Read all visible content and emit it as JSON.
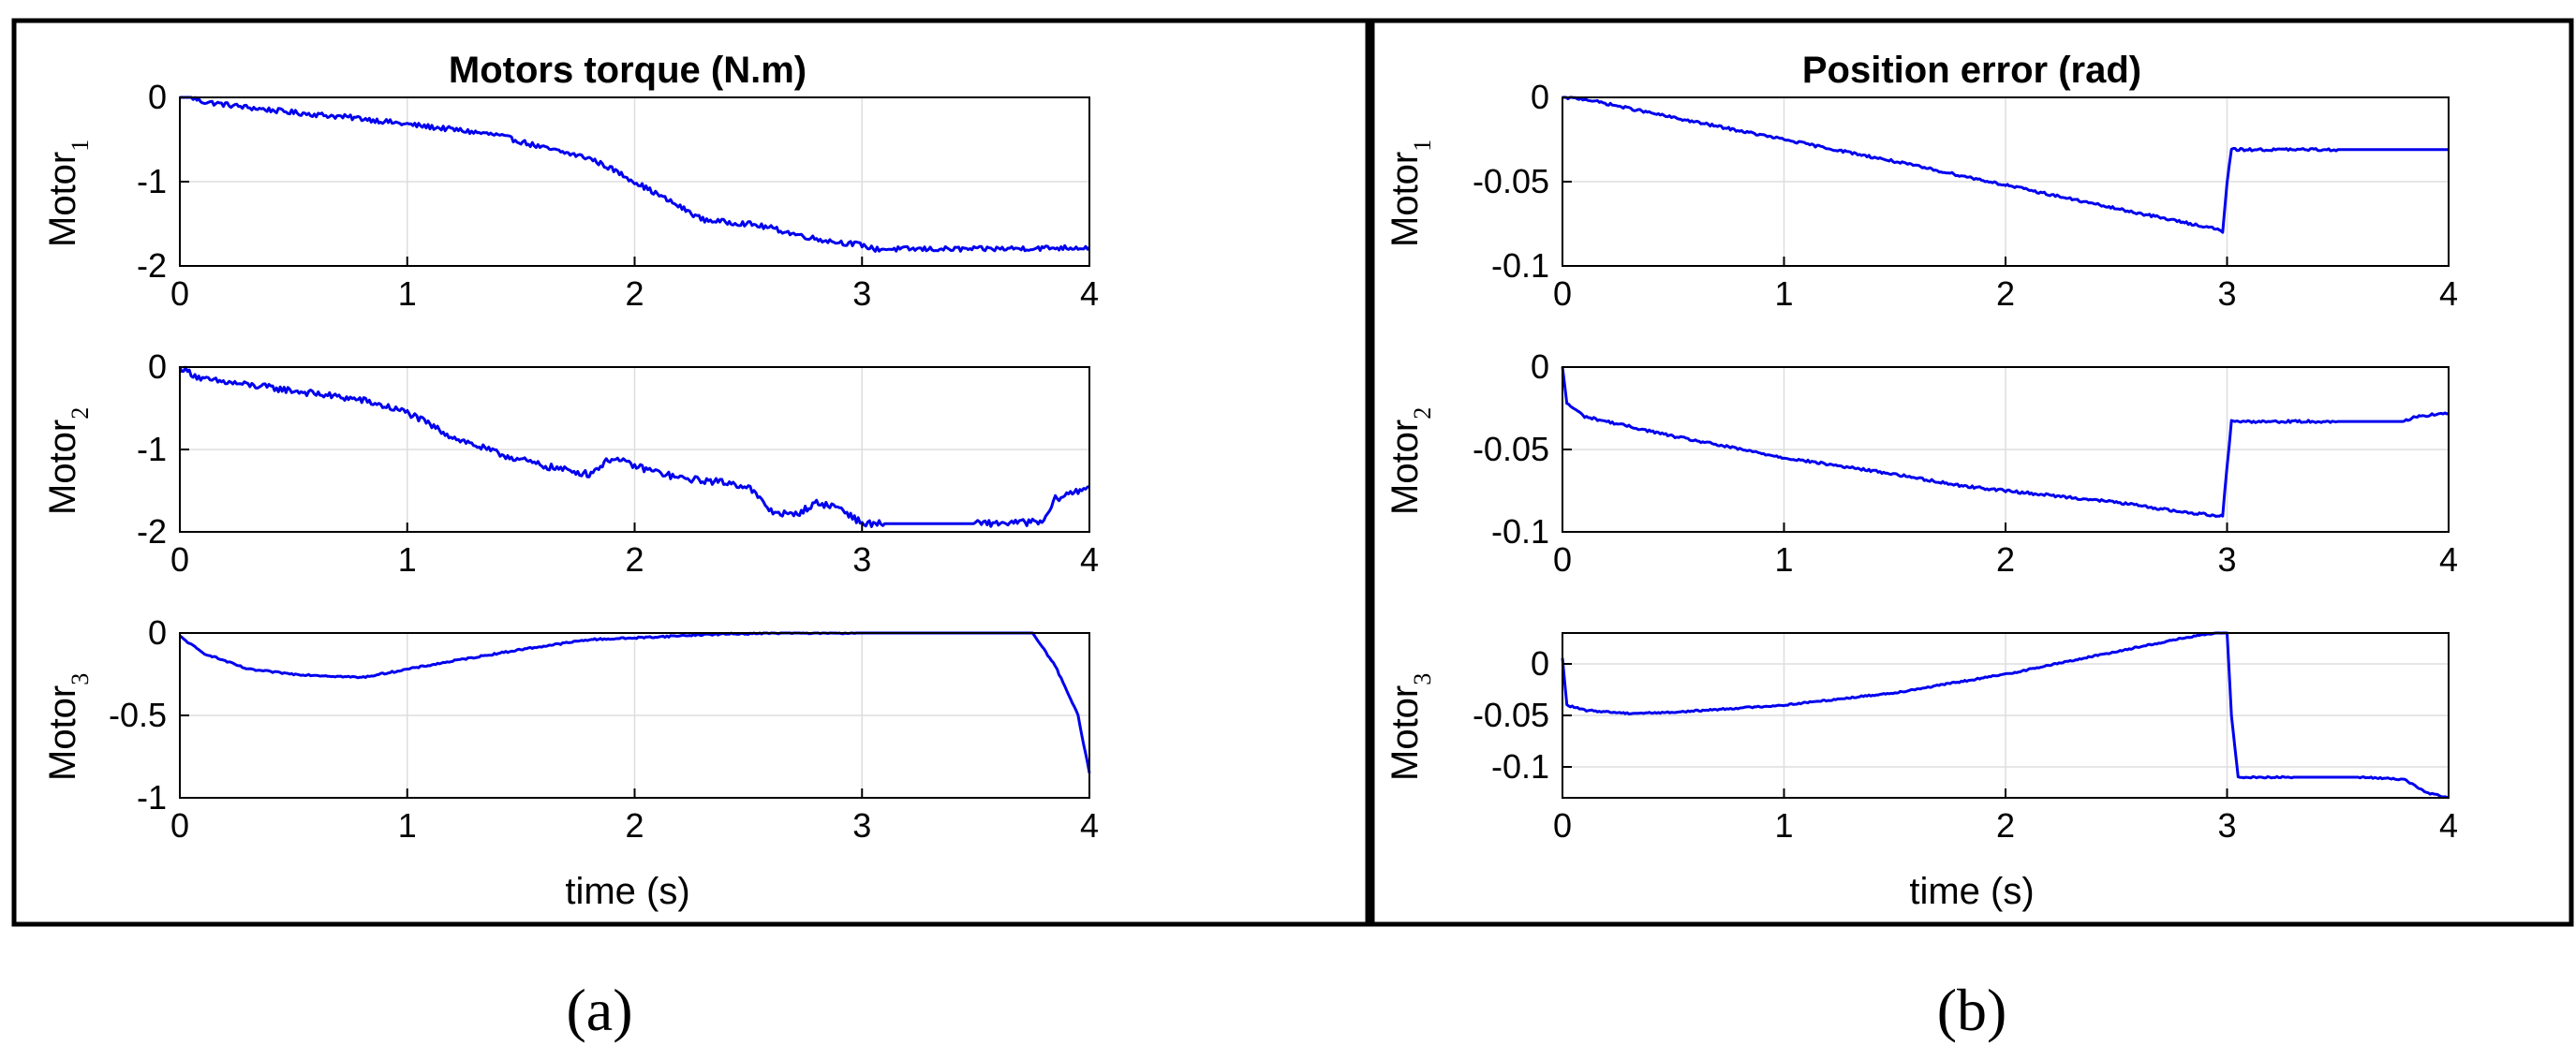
{
  "figures": [
    {
      "title": "Motors torque (N.m)",
      "caption": "(a)",
      "xlabel": "time (s)"
    },
    {
      "title": "Position error (rad)",
      "caption": "(b)",
      "xlabel": "time (s)"
    }
  ],
  "colors": {
    "series": "#0000ee",
    "grid": "#dedede",
    "frame": "#000000"
  },
  "chart_data": [
    {
      "type": "line",
      "figure": "(a)",
      "panel_title": "Motors torque (N.m)",
      "ylabel": "Motor",
      "ylabel_sub": "1",
      "xlabel": "",
      "xlim": [
        0,
        4
      ],
      "ylim": [
        -2,
        0
      ],
      "xticks": [
        "0",
        "1",
        "2",
        "3",
        "4"
      ],
      "yticks": [
        {
          "v": 0,
          "label": "0"
        },
        {
          "v": -1,
          "label": "-1"
        },
        {
          "v": -2,
          "label": "-2"
        }
      ],
      "grid": true,
      "x": [
        0,
        0.05,
        0.1,
        0.3,
        0.5,
        0.8,
        1.0,
        1.2,
        1.4,
        1.6,
        1.8,
        1.9,
        2.0,
        2.1,
        2.2,
        2.3,
        2.4,
        2.5,
        2.6,
        2.7,
        2.8,
        2.9,
        3.0,
        3.05,
        3.5,
        4.0
      ],
      "values": [
        0,
        0,
        -0.05,
        -0.12,
        -0.18,
        -0.25,
        -0.32,
        -0.38,
        -0.45,
        -0.6,
        -0.72,
        -0.85,
        -1.0,
        -1.15,
        -1.3,
        -1.45,
        -1.48,
        -1.5,
        -1.55,
        -1.62,
        -1.68,
        -1.72,
        -1.75,
        -1.8,
        -1.8,
        -1.78
      ],
      "noise": 0.06
    },
    {
      "type": "line",
      "figure": "(a)",
      "ylabel": "Motor",
      "ylabel_sub": "2",
      "xlabel": "",
      "xlim": [
        0,
        4
      ],
      "ylim": [
        -2,
        0
      ],
      "xticks": [
        "0",
        "1",
        "2",
        "3",
        "4"
      ],
      "yticks": [
        {
          "v": 0,
          "label": "0"
        },
        {
          "v": -1,
          "label": "-1"
        },
        {
          "v": -2,
          "label": "-2"
        }
      ],
      "grid": true,
      "x": [
        0,
        0.1,
        0.4,
        0.8,
        1.0,
        1.2,
        1.4,
        1.6,
        1.8,
        1.9,
        2.0,
        2.2,
        2.4,
        2.5,
        2.6,
        2.7,
        2.8,
        2.9,
        3.0,
        3.1,
        3.5,
        3.8,
        3.85,
        3.95,
        4.0
      ],
      "values": [
        0,
        -0.15,
        -0.25,
        -0.4,
        -0.55,
        -0.85,
        -1.05,
        -1.2,
        -1.3,
        -1.1,
        -1.2,
        -1.35,
        -1.4,
        -1.45,
        -1.75,
        -1.8,
        -1.65,
        -1.7,
        -1.9,
        -1.9,
        -1.9,
        -1.88,
        -1.6,
        -1.5,
        -1.45
      ],
      "noise": 0.08
    },
    {
      "type": "line",
      "figure": "(a)",
      "ylabel": "Motor",
      "ylabel_sub": "3",
      "xlabel": "time (s)",
      "xlim": [
        0,
        4
      ],
      "ylim": [
        -1,
        0
      ],
      "xticks": [
        "0",
        "1",
        "2",
        "3",
        "4"
      ],
      "yticks": [
        {
          "v": 0,
          "label": "0"
        },
        {
          "v": -0.5,
          "label": "-0.5"
        },
        {
          "v": -1,
          "label": "-1"
        }
      ],
      "grid": true,
      "x": [
        0,
        0.1,
        0.3,
        0.5,
        0.8,
        1.0,
        1.2,
        1.5,
        1.8,
        2.0,
        2.3,
        2.6,
        3.0,
        3.5,
        3.75,
        3.85,
        3.95,
        4.0
      ],
      "values": [
        -0.02,
        -0.12,
        -0.22,
        -0.25,
        -0.27,
        -0.22,
        -0.17,
        -0.1,
        -0.04,
        -0.03,
        -0.01,
        0.0,
        0.0,
        0.0,
        0.0,
        -0.2,
        -0.5,
        -0.85
      ],
      "noise": 0.01
    },
    {
      "type": "line",
      "figure": "(b)",
      "panel_title": "Position error (rad)",
      "ylabel": "Motor",
      "ylabel_sub": "1",
      "xlabel": "",
      "xlim": [
        0,
        4
      ],
      "ylim": [
        -0.1,
        0
      ],
      "xticks": [
        "0",
        "1",
        "2",
        "3",
        "4"
      ],
      "yticks": [
        {
          "v": 0,
          "label": "0"
        },
        {
          "v": -0.05,
          "label": "-0.05"
        },
        {
          "v": -0.1,
          "label": "-0.1"
        }
      ],
      "grid": true,
      "x": [
        0,
        0.1,
        0.5,
        1.0,
        1.5,
        2.0,
        2.5,
        2.95,
        2.98,
        3.0,
        3.02,
        3.5,
        4.0
      ],
      "values": [
        0,
        -0.001,
        -0.012,
        -0.025,
        -0.038,
        -0.052,
        -0.066,
        -0.078,
        -0.08,
        -0.05,
        -0.031,
        -0.031,
        -0.031
      ],
      "noise": 0.0015
    },
    {
      "type": "line",
      "figure": "(b)",
      "ylabel": "Motor",
      "ylabel_sub": "2",
      "xlabel": "",
      "xlim": [
        0,
        4
      ],
      "ylim": [
        -0.1,
        0
      ],
      "xticks": [
        "0",
        "1",
        "2",
        "3",
        "4"
      ],
      "yticks": [
        {
          "v": 0,
          "label": "0"
        },
        {
          "v": -0.05,
          "label": "-0.05"
        },
        {
          "v": -0.1,
          "label": "-0.1"
        }
      ],
      "grid": true,
      "x": [
        0,
        0.02,
        0.1,
        0.5,
        1.0,
        1.5,
        1.8,
        2.0,
        2.5,
        2.8,
        2.95,
        2.98,
        3.0,
        3.02,
        3.5,
        3.8,
        3.85,
        4.0
      ],
      "values": [
        0,
        -0.022,
        -0.03,
        -0.042,
        -0.055,
        -0.065,
        -0.072,
        -0.075,
        -0.082,
        -0.088,
        -0.09,
        -0.09,
        -0.06,
        -0.033,
        -0.033,
        -0.033,
        -0.03,
        -0.028
      ],
      "noise": 0.0015
    },
    {
      "type": "line",
      "figure": "(b)",
      "ylabel": "Motor",
      "ylabel_sub": "3",
      "xlabel": "time (s)",
      "xlim": [
        0,
        4
      ],
      "ylim": [
        -0.13,
        0.03
      ],
      "xticks": [
        "0",
        "1",
        "2",
        "3",
        "4"
      ],
      "yticks": [
        {
          "v": 0,
          "label": "0"
        },
        {
          "v": -0.05,
          "label": "-0.05"
        },
        {
          "v": -0.1,
          "label": "-0.1"
        }
      ],
      "grid": true,
      "x": [
        0,
        0.02,
        0.1,
        0.3,
        0.5,
        1.0,
        1.5,
        2.0,
        2.5,
        2.8,
        2.95,
        3.0,
        3.02,
        3.05,
        3.3,
        3.6,
        3.8,
        3.9,
        4.0
      ],
      "values": [
        0.005,
        -0.04,
        -0.045,
        -0.048,
        -0.047,
        -0.04,
        -0.028,
        -0.01,
        0.012,
        0.025,
        0.03,
        0.03,
        -0.05,
        -0.11,
        -0.11,
        -0.11,
        -0.112,
        -0.125,
        -0.13
      ],
      "noise": 0.0015
    }
  ]
}
